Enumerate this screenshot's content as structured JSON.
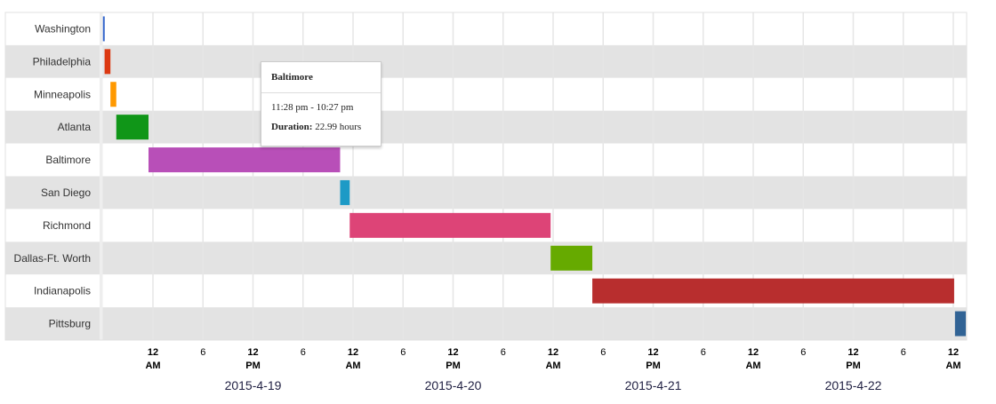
{
  "chart_data": {
    "type": "timeline",
    "range": [
      "2015-04-18T18:00",
      "2015-04-23T01:30"
    ],
    "rows": [
      {
        "label": "Washington",
        "start": "2015-04-18T18:00",
        "end": "2015-04-18T18:12",
        "color": "#3366cc"
      },
      {
        "label": "Philadelphia",
        "start": "2015-04-18T18:12",
        "end": "2015-04-18T18:54",
        "color": "#dc3912"
      },
      {
        "label": "Minneapolis",
        "start": "2015-04-18T18:54",
        "end": "2015-04-18T19:36",
        "color": "#ff9900"
      },
      {
        "label": "Atlanta",
        "start": "2015-04-18T19:36",
        "end": "2015-04-18T23:28",
        "color": "#109618"
      },
      {
        "label": "Baltimore",
        "start": "2015-04-18T23:28",
        "end": "2015-04-19T22:27",
        "color": "#b84fb8"
      },
      {
        "label": "San Diego",
        "start": "2015-04-19T22:27",
        "end": "2015-04-19T23:36",
        "color": "#1d9ac6"
      },
      {
        "label": "Richmond",
        "start": "2015-04-19T23:36",
        "end": "2015-04-20T23:42",
        "color": "#dd4477"
      },
      {
        "label": "Dallas-Ft. Worth",
        "start": "2015-04-20T23:42",
        "end": "2015-04-21T04:42",
        "color": "#66aa00"
      },
      {
        "label": "Indianapolis",
        "start": "2015-04-21T04:42",
        "end": "2015-04-23T00:06",
        "color": "#b82e2e"
      },
      {
        "label": "Pittsburg",
        "start": "2015-04-23T00:12",
        "end": "2015-04-23T01:30",
        "color": "#316395"
      }
    ],
    "ticks": [
      {
        "t": "2015-04-19T00:00",
        "l1": "12",
        "l2": "AM"
      },
      {
        "t": "2015-04-19T06:00",
        "l1": "6",
        "l2": ""
      },
      {
        "t": "2015-04-19T12:00",
        "l1": "12",
        "l2": "PM"
      },
      {
        "t": "2015-04-19T18:00",
        "l1": "6",
        "l2": ""
      },
      {
        "t": "2015-04-20T00:00",
        "l1": "12",
        "l2": "AM"
      },
      {
        "t": "2015-04-20T06:00",
        "l1": "6",
        "l2": ""
      },
      {
        "t": "2015-04-20T12:00",
        "l1": "12",
        "l2": "PM"
      },
      {
        "t": "2015-04-20T18:00",
        "l1": "6",
        "l2": ""
      },
      {
        "t": "2015-04-21T00:00",
        "l1": "12",
        "l2": "AM"
      },
      {
        "t": "2015-04-21T06:00",
        "l1": "6",
        "l2": ""
      },
      {
        "t": "2015-04-21T12:00",
        "l1": "12",
        "l2": "PM"
      },
      {
        "t": "2015-04-21T18:00",
        "l1": "6",
        "l2": ""
      },
      {
        "t": "2015-04-22T00:00",
        "l1": "12",
        "l2": "AM"
      },
      {
        "t": "2015-04-22T06:00",
        "l1": "6",
        "l2": ""
      },
      {
        "t": "2015-04-22T12:00",
        "l1": "12",
        "l2": "PM"
      },
      {
        "t": "2015-04-22T18:00",
        "l1": "6",
        "l2": ""
      },
      {
        "t": "2015-04-23T00:00",
        "l1": "12",
        "l2": "AM"
      }
    ],
    "dates": [
      {
        "t": "2015-04-19T12:00",
        "label": "2015-4-19"
      },
      {
        "t": "2015-04-20T12:00",
        "label": "2015-4-20"
      },
      {
        "t": "2015-04-21T12:00",
        "label": "2015-4-21"
      },
      {
        "t": "2015-04-22T12:00",
        "label": "2015-4-22"
      }
    ]
  },
  "tooltip": {
    "title": "Baltimore",
    "range": "11:28 pm - 10:27 pm",
    "duration_label": "Duration:",
    "duration_value": " 22.99 hours"
  }
}
